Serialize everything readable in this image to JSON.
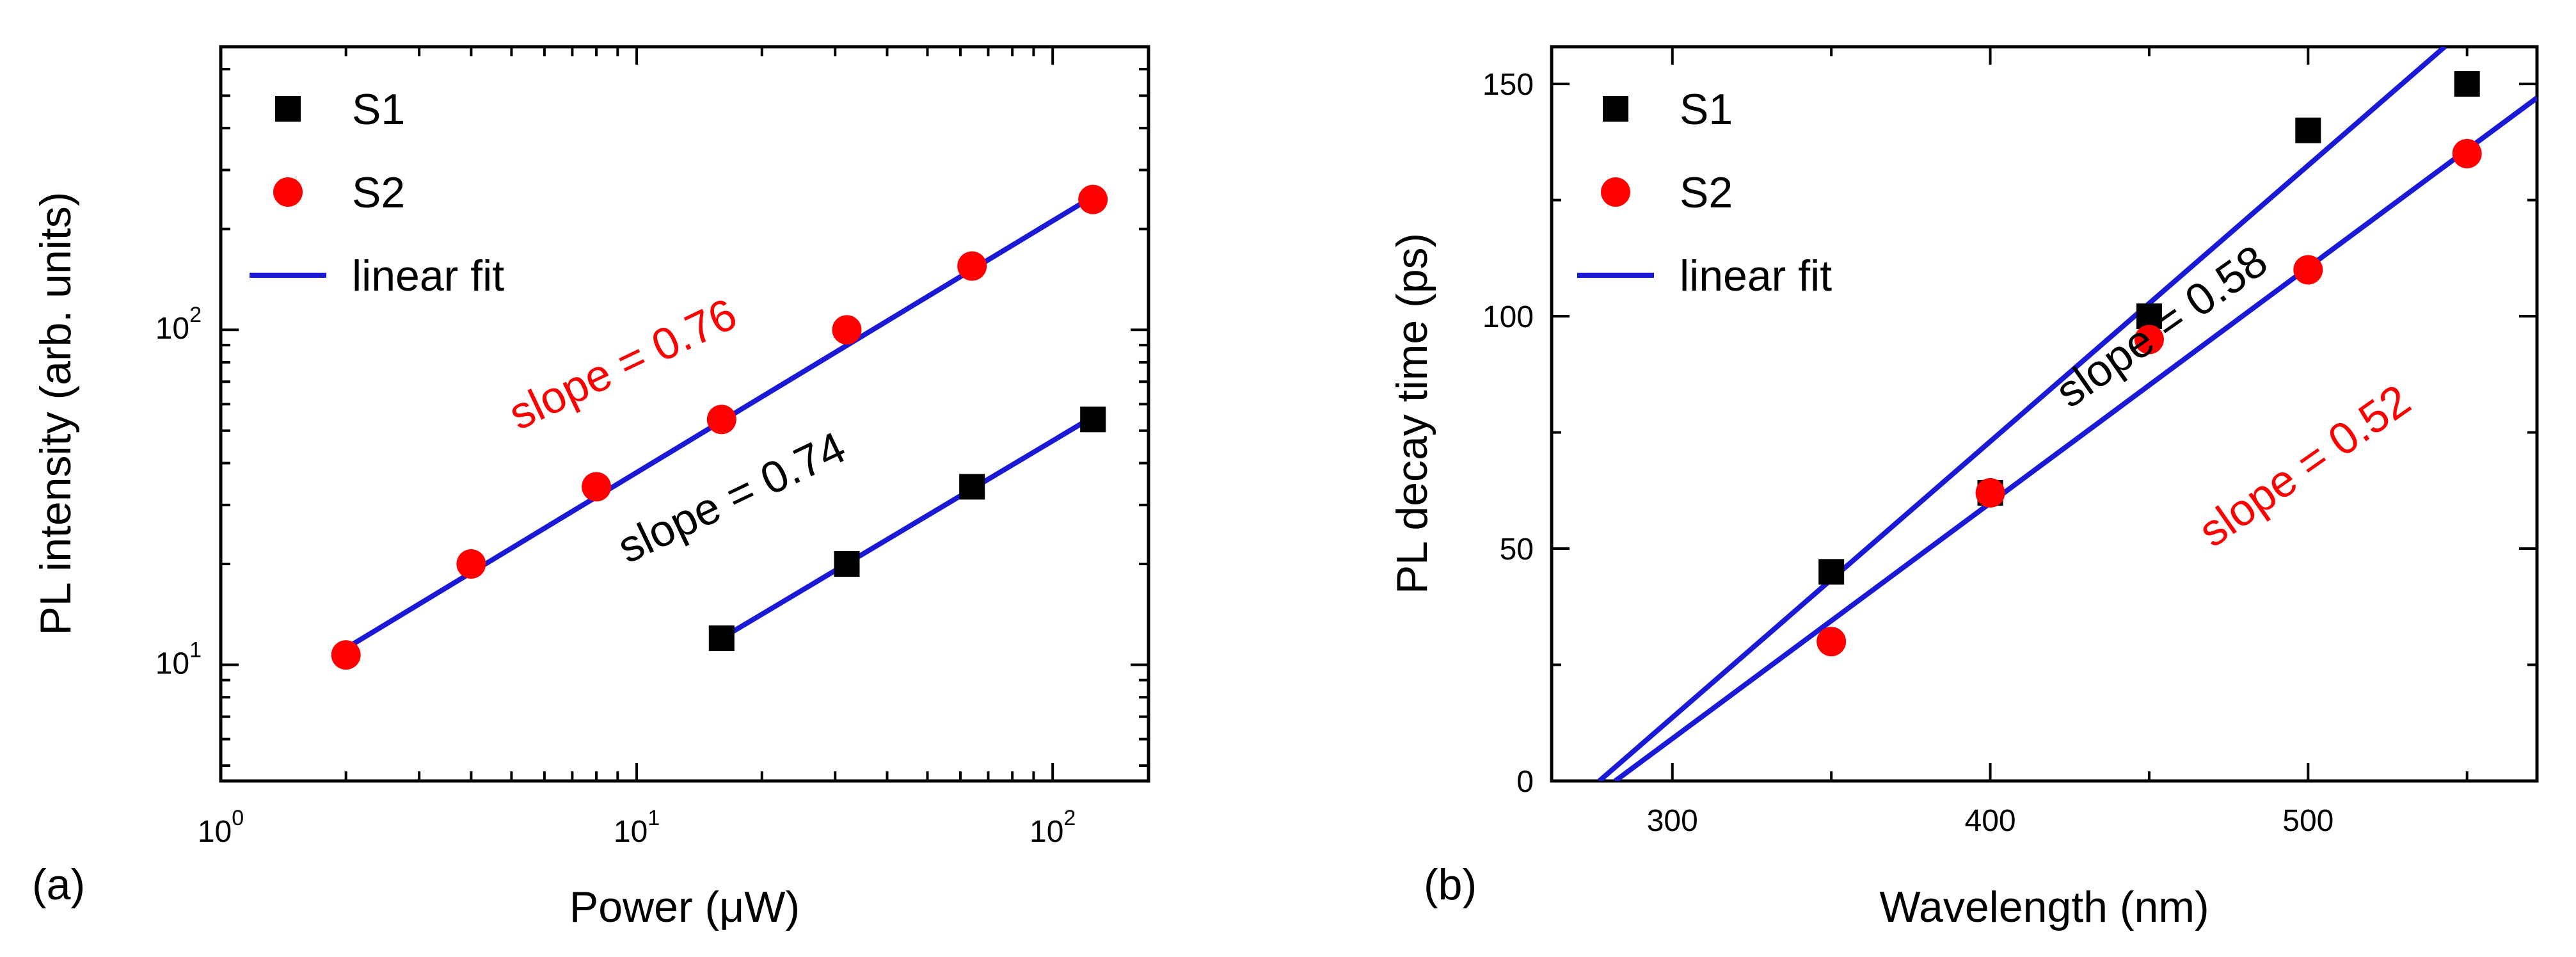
{
  "chart_data": [
    {
      "type": "scatter",
      "panel_label": "(a)",
      "xlabel": "Power (μW)",
      "ylabel": "PL intensity (arb. units)",
      "xscale": "log",
      "yscale": "log",
      "xlim": [
        1,
        170
      ],
      "ylim": [
        4.5,
        700
      ],
      "xticks": [
        {
          "value": 1,
          "base": "10",
          "exp": "0"
        },
        {
          "value": 10,
          "base": "10",
          "exp": "1"
        },
        {
          "value": 100,
          "base": "10",
          "exp": "2"
        }
      ],
      "yticks": [
        {
          "value": 10,
          "base": "10",
          "exp": "1"
        },
        {
          "value": 100,
          "base": "10",
          "exp": "2"
        }
      ],
      "series": [
        {
          "name": "S1",
          "marker": "square",
          "color": "#000000",
          "x": [
            16,
            32,
            64,
            125
          ],
          "y": [
            12,
            20,
            34,
            54
          ]
        },
        {
          "name": "S2",
          "marker": "circle",
          "color": "#ff0000",
          "x": [
            2,
            4,
            8,
            16,
            32,
            64,
            125
          ],
          "y": [
            10.7,
            20,
            34,
            54,
            100,
            155,
            245
          ]
        }
      ],
      "fits": [
        {
          "name": "linear fit",
          "color": "#1a1ad6",
          "x": [
            16,
            125
          ],
          "y": [
            12,
            55
          ]
        },
        {
          "name": "linear fit",
          "color": "#1a1ad6",
          "x": [
            2,
            125
          ],
          "y": [
            11.2,
            250
          ]
        }
      ],
      "legend": {
        "position": "top-left",
        "entries": [
          "S1",
          "S2",
          "linear fit"
        ]
      },
      "annotations": [
        {
          "text": "slope = 0.76",
          "color": "#ff0000",
          "x": 5.2,
          "y": 50
        },
        {
          "text": "slope = 0.74",
          "color": "#000000",
          "x": 9.5,
          "y": 20
        }
      ]
    },
    {
      "type": "scatter",
      "panel_label": "(b)",
      "xlabel": "Wavelength (nm)",
      "ylabel": "PL decay time (ps)",
      "xscale": "linear",
      "yscale": "linear",
      "xlim": [
        262,
        572
      ],
      "ylim": [
        0,
        158
      ],
      "xticks": [
        300,
        400,
        500
      ],
      "yticks": [
        0,
        50,
        100,
        150
      ],
      "series": [
        {
          "name": "S1",
          "marker": "square",
          "color": "#000000",
          "x": [
            350,
            400,
            450,
            500,
            550
          ],
          "y": [
            45,
            62,
            100,
            140,
            150
          ]
        },
        {
          "name": "S2",
          "marker": "circle",
          "color": "#ff0000",
          "x": [
            350,
            400,
            450,
            500,
            550
          ],
          "y": [
            30,
            62,
            95,
            110,
            135
          ]
        }
      ],
      "fits": [
        {
          "name": "linear fit",
          "color": "#1a1ad6",
          "x": [
            277,
            543
          ],
          "y": [
            0,
            158
          ]
        },
        {
          "name": "linear fit",
          "color": "#1a1ad6",
          "x": [
            282,
            572
          ],
          "y": [
            0,
            147
          ]
        }
      ],
      "legend": {
        "position": "top-left",
        "entries": [
          "S1",
          "S2",
          "linear fit"
        ]
      },
      "annotations": [
        {
          "text": "slope = 0.58",
          "color": "#000000",
          "x": 425,
          "y": 80
        },
        {
          "text": "slope = 0.52",
          "color": "#ff0000",
          "x": 470,
          "y": 50
        }
      ]
    }
  ]
}
